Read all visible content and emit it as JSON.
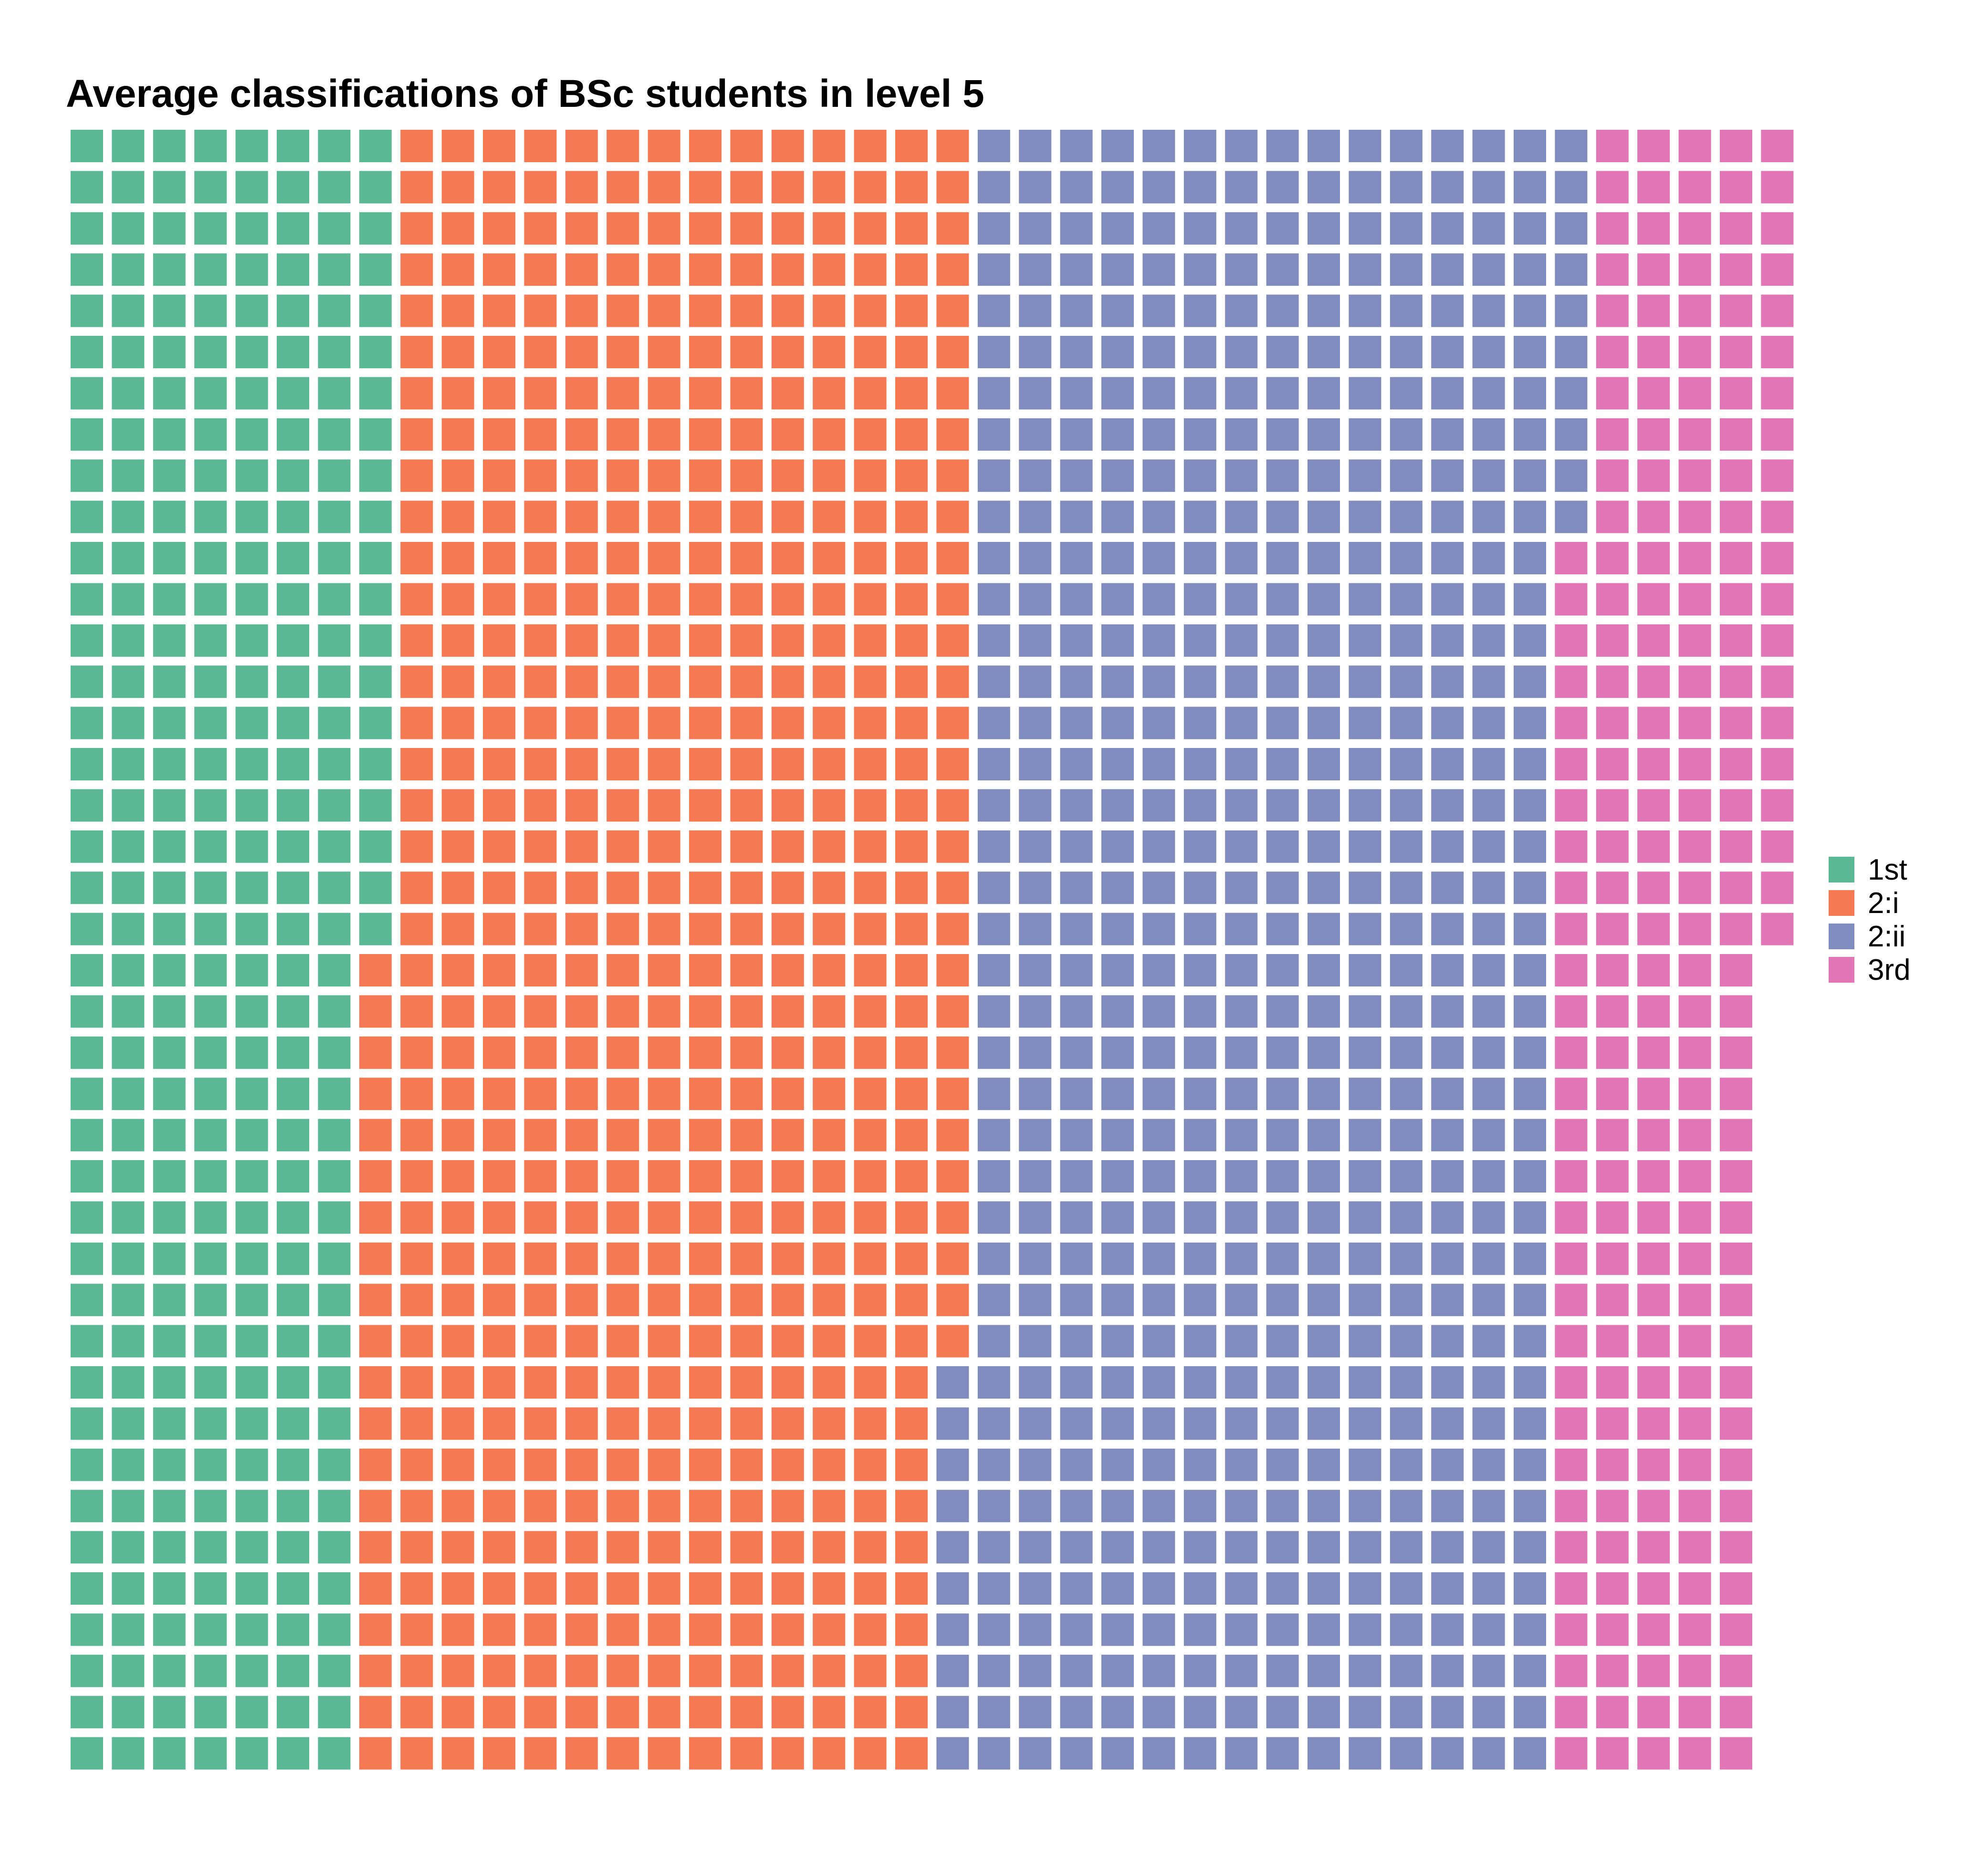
{
  "chart_data": {
    "type": "waffle",
    "title": "Average classifications of BSc students in level 5",
    "rows": 40,
    "columns": 42,
    "categories": [
      "1st",
      "2:i",
      "2:ii",
      "3rd"
    ],
    "values": [
      300,
      570,
      580,
      210
    ],
    "colors": [
      "#5bb894",
      "#f57a54",
      "#7f8cbd",
      "#e175b6"
    ],
    "grid": false,
    "legend_position": "right"
  }
}
